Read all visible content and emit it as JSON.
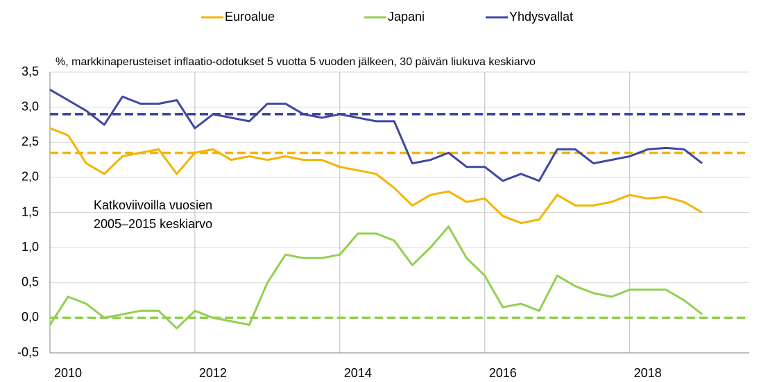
{
  "chart_data": {
    "type": "line",
    "subtitle": "%, markkinaperusteiset inflaatio-odotukset 5 vuotta 5 vuoden jälkeen, 30 päivän liukuva keskiarvo",
    "annotation": [
      "Katkoviivoilla vuosien",
      "2005–2015 keskiarvo"
    ],
    "x": [
      2010.0,
      2010.25,
      2010.5,
      2010.75,
      2011.0,
      2011.25,
      2011.5,
      2011.75,
      2012.0,
      2012.25,
      2012.5,
      2012.75,
      2013.0,
      2013.25,
      2013.5,
      2013.75,
      2014.0,
      2014.25,
      2014.5,
      2014.75,
      2015.0,
      2015.25,
      2015.5,
      2015.75,
      2016.0,
      2016.25,
      2016.5,
      2016.75,
      2017.0,
      2017.25,
      2017.5,
      2017.75,
      2018.0,
      2018.25,
      2018.5,
      2018.75,
      2019.0
    ],
    "series": [
      {
        "name": "Euroalue",
        "color": "#f5b400",
        "values": [
          2.7,
          2.6,
          2.2,
          2.05,
          2.3,
          2.35,
          2.4,
          2.05,
          2.35,
          2.4,
          2.25,
          2.3,
          2.25,
          2.3,
          2.25,
          2.25,
          2.15,
          2.1,
          2.05,
          1.85,
          1.6,
          1.75,
          1.8,
          1.65,
          1.7,
          1.45,
          1.35,
          1.4,
          1.75,
          1.6,
          1.6,
          1.65,
          1.75,
          1.7,
          1.72,
          1.65,
          1.5
        ]
      },
      {
        "name": "Japani",
        "color": "#92d050",
        "values": [
          -0.1,
          0.3,
          0.2,
          0.0,
          0.05,
          0.1,
          0.1,
          -0.15,
          0.1,
          0.0,
          -0.05,
          -0.1,
          0.5,
          0.9,
          0.85,
          0.85,
          0.9,
          1.2,
          1.2,
          1.1,
          0.75,
          1.0,
          1.3,
          0.85,
          0.6,
          0.15,
          0.2,
          0.1,
          0.6,
          0.45,
          0.35,
          0.3,
          0.4,
          0.4,
          0.4,
          0.25,
          0.05
        ]
      },
      {
        "name": "Yhdysvallat",
        "color": "#3f48a0",
        "values": [
          3.25,
          3.1,
          2.95,
          2.75,
          3.15,
          3.05,
          3.05,
          3.1,
          2.7,
          2.9,
          2.85,
          2.8,
          3.05,
          3.05,
          2.9,
          2.85,
          2.9,
          2.85,
          2.8,
          2.8,
          2.2,
          2.25,
          2.35,
          2.15,
          2.15,
          1.95,
          2.05,
          1.95,
          2.4,
          2.4,
          2.2,
          2.25,
          2.3,
          2.4,
          2.42,
          2.4,
          2.2
        ]
      }
    ],
    "reference_lines": [
      {
        "value": 2.35,
        "color": "#f5b400"
      },
      {
        "value": 0.0,
        "color": "#92d050"
      },
      {
        "value": 2.9,
        "color": "#3f48a0"
      }
    ],
    "xlim": [
      2010,
      2019.65
    ],
    "xticks": [
      2010,
      2012,
      2014,
      2016,
      2018
    ],
    "ylim": [
      -0.5,
      3.5
    ],
    "yticks": [
      {
        "value": -0.5,
        "label": "-0,5"
      },
      {
        "value": 0,
        "label": "0,0"
      },
      {
        "value": 0.5,
        "label": "0,5"
      },
      {
        "value": 1,
        "label": "1,0"
      },
      {
        "value": 1.5,
        "label": "1,5"
      },
      {
        "value": 2,
        "label": "2,0"
      },
      {
        "value": 2.5,
        "label": "2,5"
      },
      {
        "value": 3,
        "label": "3,0"
      },
      {
        "value": 3.5,
        "label": "3,5"
      }
    ],
    "grid": true
  }
}
